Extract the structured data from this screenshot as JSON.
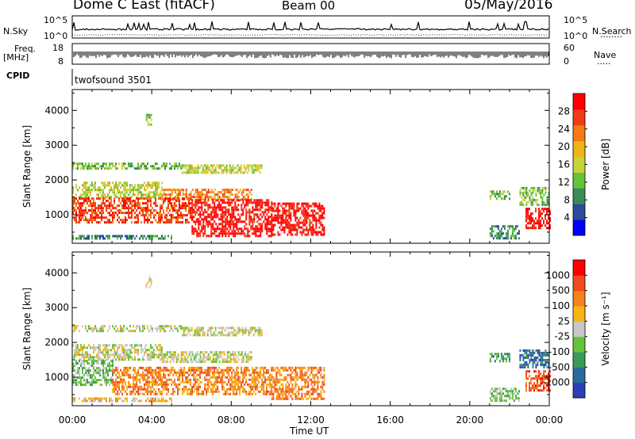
{
  "header": {
    "station": "Dome C East (fitACF)",
    "beam": "Beam 00",
    "date": "05/May/2016"
  },
  "panels": {
    "nsky": {
      "label": "N.Sky",
      "tick_top": "10^5",
      "tick_bottom": "10^0",
      "right_tick_top": "10^5",
      "right_tick_bottom": "10^0",
      "right_label": "N.Search"
    },
    "freq": {
      "label_top": "Freq.",
      "label_bottom": "[MHz]",
      "tick_top": "18",
      "tick_bottom": "8",
      "right_tick_top": "60",
      "right_tick_bottom": "0",
      "right_label": "Nave"
    },
    "cpid": {
      "label": "CPID",
      "program": "twofsound 3501"
    }
  },
  "x_axis": {
    "label": "Time UT",
    "ticks": [
      "00:00",
      "04:00",
      "08:00",
      "12:00",
      "16:00",
      "20:00",
      "00:00"
    ]
  },
  "power_colorbar": {
    "label": "Power [dB]",
    "ticks": [
      "4",
      "8",
      "12",
      "16",
      "20",
      "24",
      "28"
    ],
    "colors": [
      "#0000ff",
      "#2a4c9a",
      "#3a8a5a",
      "#66c23a",
      "#c8d23a",
      "#f0b418",
      "#f57a14",
      "#f03c14",
      "#ff0000"
    ]
  },
  "velocity_colorbar": {
    "label": "Velocity [m s⁻¹]",
    "ticks": [
      "1000",
      "500",
      "100",
      "25",
      "-25",
      "-100",
      "-500",
      "-1000"
    ],
    "colors": [
      "#2a3fb8",
      "#2a6a9a",
      "#3a9a5a",
      "#66c23a",
      "#c8c8c8",
      "#f5b410",
      "#f5821e",
      "#f04a1e",
      "#ff0000"
    ]
  },
  "chart_data": [
    {
      "type": "heatmap",
      "title": "",
      "xlabel": "Time UT",
      "ylabel": "Slant Range [km]",
      "xlim": [
        0,
        24
      ],
      "ylim": [
        180,
        4600
      ],
      "yticks": [
        "1000",
        "2000",
        "3000",
        "4000"
      ],
      "colorbar_label": "Power [dB]",
      "bands": [
        {
          "x": [
            0.0,
            5.5
          ],
          "y": [
            2300,
            2500
          ],
          "level": 3
        },
        {
          "x": [
            5.5,
            9.5
          ],
          "y": [
            2200,
            2450
          ],
          "level": 4
        },
        {
          "x": [
            0.0,
            4.5
          ],
          "y": [
            1500,
            1950
          ],
          "level": 4
        },
        {
          "x": [
            4.5,
            9.0
          ],
          "y": [
            1450,
            1750
          ],
          "level": 6
        },
        {
          "x": [
            0.0,
            6.0
          ],
          "y": [
            800,
            1500
          ],
          "level": 7
        },
        {
          "x": [
            6.0,
            10.0
          ],
          "y": [
            400,
            1450
          ],
          "level": 8
        },
        {
          "x": [
            10.0,
            12.7
          ],
          "y": [
            400,
            1350
          ],
          "level": 8
        },
        {
          "x": [
            0.0,
            5.0
          ],
          "y": [
            300,
            420
          ],
          "level": 2
        },
        {
          "x": [
            3.7,
            3.95
          ],
          "y": [
            3600,
            3900
          ],
          "level": 3
        },
        {
          "x": [
            21.0,
            22.5
          ],
          "y": [
            300,
            700
          ],
          "level": 2
        },
        {
          "x": [
            21.0,
            22.0
          ],
          "y": [
            1450,
            1700
          ],
          "level": 3
        },
        {
          "x": [
            22.5,
            24.0
          ],
          "y": [
            1300,
            1800
          ],
          "level": 3
        },
        {
          "x": [
            22.8,
            24.0
          ],
          "y": [
            600,
            1200
          ],
          "level": 8
        }
      ]
    },
    {
      "type": "heatmap",
      "title": "",
      "xlabel": "Time UT",
      "ylabel": "Slant Range [km]",
      "xlim": [
        0,
        24
      ],
      "ylim": [
        180,
        4600
      ],
      "yticks": [
        "1000",
        "2000",
        "3000",
        "4000"
      ],
      "colorbar_label": "Velocity [m s⁻¹]",
      "bands": [
        {
          "x": [
            0.0,
            5.5
          ],
          "y": [
            2300,
            2500
          ],
          "level": 4
        },
        {
          "x": [
            5.5,
            9.5
          ],
          "y": [
            2200,
            2450
          ],
          "level": 4
        },
        {
          "x": [
            0.0,
            4.5
          ],
          "y": [
            1500,
            1950
          ],
          "level": 4
        },
        {
          "x": [
            4.5,
            9.0
          ],
          "y": [
            1450,
            1750
          ],
          "level": 4
        },
        {
          "x": [
            0.0,
            2.0
          ],
          "y": [
            800,
            1500
          ],
          "level": 3
        },
        {
          "x": [
            2.0,
            10.0
          ],
          "y": [
            500,
            1300
          ],
          "level": 6
        },
        {
          "x": [
            10.0,
            12.7
          ],
          "y": [
            400,
            1300
          ],
          "level": 6
        },
        {
          "x": [
            0.0,
            5.0
          ],
          "y": [
            300,
            420
          ],
          "level": 5
        },
        {
          "x": [
            3.7,
            3.95
          ],
          "y": [
            3600,
            3900
          ],
          "level": 4
        },
        {
          "x": [
            21.0,
            22.5
          ],
          "y": [
            300,
            700
          ],
          "level": 3
        },
        {
          "x": [
            21.0,
            22.0
          ],
          "y": [
            1450,
            1700
          ],
          "level": 2
        },
        {
          "x": [
            22.5,
            24.0
          ],
          "y": [
            1300,
            1800
          ],
          "level": 1
        },
        {
          "x": [
            22.8,
            24.0
          ],
          "y": [
            600,
            1200
          ],
          "level": 7
        }
      ]
    }
  ]
}
